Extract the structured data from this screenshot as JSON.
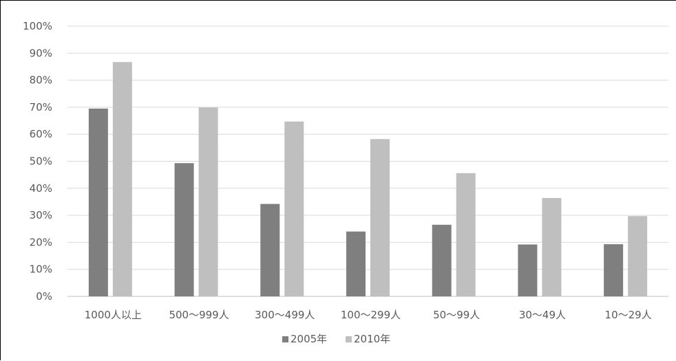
{
  "chart_data": {
    "type": "bar",
    "categories": [
      "1000人以上",
      "500～999人",
      "300～499人",
      "100～299人",
      "50～99人",
      "30～49人",
      "10～29人"
    ],
    "series": [
      {
        "name": "2005年",
        "color": "#7f7f7f",
        "values": [
          69.5,
          49.3,
          34.2,
          24.0,
          26.5,
          19.2,
          19.3
        ]
      },
      {
        "name": "2010年",
        "color": "#bfbfbf",
        "values": [
          86.7,
          69.9,
          64.7,
          58.2,
          45.6,
          36.4,
          29.7
        ]
      }
    ],
    "ylim": [
      0,
      100
    ],
    "yticks": [
      "0%",
      "10%",
      "20%",
      "30%",
      "40%",
      "50%",
      "60%",
      "70%",
      "80%",
      "90%",
      "100%"
    ],
    "title": "",
    "xlabel": "",
    "ylabel": "",
    "grid": true,
    "legend_position": "bottom"
  }
}
